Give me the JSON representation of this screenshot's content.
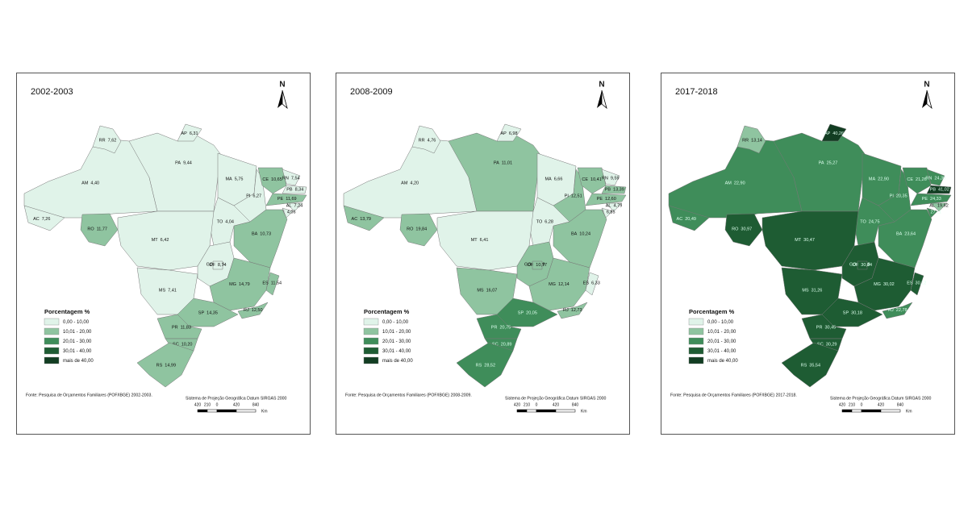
{
  "panels": [
    {
      "title": "2002-2003",
      "north": "N",
      "legend_title": "Porcentagem %",
      "legend": [
        {
          "label": "0,00 - 10,00",
          "color": "#e0f3e9"
        },
        {
          "label": "10,01 - 20,00",
          "color": "#8fc4a0"
        },
        {
          "label": "20,01 - 30,00",
          "color": "#3f8d5a"
        },
        {
          "label": "30,01 - 40,00",
          "color": "#1e5c33"
        },
        {
          "label": "mais de 40,00",
          "color": "#123d22"
        }
      ],
      "source": "Fonte: Pesquisa de Orçamentos Familiares (POF/IBGE) 2002-2003.",
      "projection": "Sistema de Projeção Geográfica Datum SIRGAS 2000",
      "scale": [
        "420",
        "210",
        "0",
        "420",
        "840",
        "Km"
      ],
      "states": [
        {
          "abbr": "AM",
          "value": "4,40",
          "color": "#e0f3e9"
        },
        {
          "abbr": "RR",
          "value": "7,62",
          "color": "#e0f3e9"
        },
        {
          "abbr": "AC",
          "value": "7,26",
          "color": "#e0f3e9"
        },
        {
          "abbr": "RO",
          "value": "11,77",
          "color": "#8fc4a0"
        },
        {
          "abbr": "PA",
          "value": "9,44",
          "color": "#e0f3e9"
        },
        {
          "abbr": "AP",
          "value": "6,31",
          "color": "#e0f3e9"
        },
        {
          "abbr": "MA",
          "value": "5,75",
          "color": "#e0f3e9"
        },
        {
          "abbr": "PI",
          "value": "6,27",
          "color": "#e0f3e9"
        },
        {
          "abbr": "CE",
          "value": "10,65",
          "color": "#8fc4a0"
        },
        {
          "abbr": "RN",
          "value": "7,54",
          "color": "#e0f3e9"
        },
        {
          "abbr": "PB",
          "value": "8,34",
          "color": "#e0f3e9"
        },
        {
          "abbr": "PE",
          "value": "11,69",
          "color": "#8fc4a0"
        },
        {
          "abbr": "AL",
          "value": "7,24",
          "color": "#e0f3e9"
        },
        {
          "abbr": "SE",
          "value": "4,06",
          "color": "#e0f3e9"
        },
        {
          "abbr": "BA",
          "value": "10,73",
          "color": "#8fc4a0"
        },
        {
          "abbr": "TO",
          "value": "4,04",
          "color": "#e0f3e9"
        },
        {
          "abbr": "MT",
          "value": "6,42",
          "color": "#e0f3e9"
        },
        {
          "abbr": "GO",
          "value": "7,25",
          "color": "#e0f3e9"
        },
        {
          "abbr": "DF",
          "value": "8,74",
          "color": "#e0f3e9"
        },
        {
          "abbr": "MS",
          "value": "7,41",
          "color": "#e0f3e9"
        },
        {
          "abbr": "MG",
          "value": "14,79",
          "color": "#8fc4a0"
        },
        {
          "abbr": "ES",
          "value": "11,54",
          "color": "#8fc4a0"
        },
        {
          "abbr": "RJ",
          "value": "12,50",
          "color": "#8fc4a0"
        },
        {
          "abbr": "SP",
          "value": "14,35",
          "color": "#8fc4a0"
        },
        {
          "abbr": "PR",
          "value": "11,83",
          "color": "#8fc4a0"
        },
        {
          "abbr": "SC",
          "value": "10,20",
          "color": "#8fc4a0"
        },
        {
          "abbr": "RS",
          "value": "14,99",
          "color": "#8fc4a0"
        }
      ]
    },
    {
      "title": "2008-2009",
      "north": "N",
      "legend_title": "Porcentagem %",
      "legend": [
        {
          "label": "0,00 - 10,00",
          "color": "#e0f3e9"
        },
        {
          "label": "10,01 - 20,00",
          "color": "#8fc4a0"
        },
        {
          "label": "20,01 - 30,00",
          "color": "#3f8d5a"
        },
        {
          "label": "30,01 - 40,00",
          "color": "#1e5c33"
        },
        {
          "label": "mais de 40,00",
          "color": "#123d22"
        }
      ],
      "source": "Fonte: Pesquisa de Orçamentos Familiares (POF/IBGE) 2008-2009.",
      "projection": "Sistema de Projeção Geográfica Datum SIRGAS 2000",
      "scale": [
        "420",
        "210",
        "0",
        "420",
        "840",
        "Km"
      ],
      "states": [
        {
          "abbr": "AM",
          "value": "4,20",
          "color": "#e0f3e9"
        },
        {
          "abbr": "RR",
          "value": "4,76",
          "color": "#e0f3e9"
        },
        {
          "abbr": "AC",
          "value": "13,79",
          "color": "#8fc4a0"
        },
        {
          "abbr": "RO",
          "value": "19,84",
          "color": "#8fc4a0"
        },
        {
          "abbr": "PA",
          "value": "11,01",
          "color": "#8fc4a0"
        },
        {
          "abbr": "AP",
          "value": "6,98",
          "color": "#e0f3e9"
        },
        {
          "abbr": "MA",
          "value": "6,66",
          "color": "#e0f3e9"
        },
        {
          "abbr": "PI",
          "value": "12,51",
          "color": "#8fc4a0"
        },
        {
          "abbr": "CE",
          "value": "10,41",
          "color": "#8fc4a0"
        },
        {
          "abbr": "RN",
          "value": "9,59",
          "color": "#e0f3e9"
        },
        {
          "abbr": "PB",
          "value": "13,39",
          "color": "#8fc4a0"
        },
        {
          "abbr": "PE",
          "value": "12,60",
          "color": "#8fc4a0"
        },
        {
          "abbr": "AL",
          "value": "4,79",
          "color": "#e0f3e9"
        },
        {
          "abbr": "SE",
          "value": "6,85",
          "color": "#e0f3e9"
        },
        {
          "abbr": "BA",
          "value": "10,24",
          "color": "#8fc4a0"
        },
        {
          "abbr": "TO",
          "value": "6,28",
          "color": "#e0f3e9"
        },
        {
          "abbr": "MT",
          "value": "6,41",
          "color": "#e0f3e9"
        },
        {
          "abbr": "GO",
          "value": "10,39",
          "color": "#8fc4a0"
        },
        {
          "abbr": "DF",
          "value": "10,77",
          "color": "#8fc4a0"
        },
        {
          "abbr": "MS",
          "value": "16,07",
          "color": "#8fc4a0"
        },
        {
          "abbr": "MG",
          "value": "12,14",
          "color": "#8fc4a0"
        },
        {
          "abbr": "ES",
          "value": "6,33",
          "color": "#e0f3e9"
        },
        {
          "abbr": "RJ",
          "value": "12,73",
          "color": "#8fc4a0"
        },
        {
          "abbr": "SP",
          "value": "20,05",
          "color": "#3f8d5a"
        },
        {
          "abbr": "PR",
          "value": "20,75",
          "color": "#3f8d5a"
        },
        {
          "abbr": "SC",
          "value": "20,89",
          "color": "#3f8d5a"
        },
        {
          "abbr": "RS",
          "value": "28,52",
          "color": "#3f8d5a"
        }
      ]
    },
    {
      "title": "2017-2018",
      "north": "N",
      "legend_title": "Porcentagem %",
      "legend": [
        {
          "label": "0,00 - 10,00",
          "color": "#e0f3e9"
        },
        {
          "label": "10,01 - 20,00",
          "color": "#8fc4a0"
        },
        {
          "label": "20,01 - 30,00",
          "color": "#3f8d5a"
        },
        {
          "label": "30,01 - 40,00",
          "color": "#1e5c33"
        },
        {
          "label": "mais de 40,00",
          "color": "#123d22"
        }
      ],
      "source": "Fonte: Pesquisa de Orçamentos Familiares (POF/IBGE) 2017-2018.",
      "projection": "Sistema de Projeção Geográfica Datum SIRGAS 2000",
      "scale": [
        "420",
        "210",
        "0",
        "420",
        "840",
        "Km"
      ],
      "states": [
        {
          "abbr": "AM",
          "value": "22,90",
          "color": "#3f8d5a"
        },
        {
          "abbr": "RR",
          "value": "13,14",
          "color": "#8fc4a0"
        },
        {
          "abbr": "AC",
          "value": "20,49",
          "color": "#3f8d5a"
        },
        {
          "abbr": "RO",
          "value": "30,97",
          "color": "#1e5c33"
        },
        {
          "abbr": "PA",
          "value": "25,27",
          "color": "#3f8d5a"
        },
        {
          "abbr": "AP",
          "value": "40,26",
          "color": "#123d22"
        },
        {
          "abbr": "MA",
          "value": "22,90",
          "color": "#3f8d5a"
        },
        {
          "abbr": "PI",
          "value": "20,35",
          "color": "#3f8d5a"
        },
        {
          "abbr": "CE",
          "value": "21,26",
          "color": "#3f8d5a"
        },
        {
          "abbr": "RN",
          "value": "24,30",
          "color": "#3f8d5a"
        },
        {
          "abbr": "PB",
          "value": "41,02",
          "color": "#123d22"
        },
        {
          "abbr": "PE",
          "value": "24,33",
          "color": "#3f8d5a"
        },
        {
          "abbr": "AL",
          "value": "19,62",
          "color": "#8fc4a0"
        },
        {
          "abbr": "SE",
          "value": "27,11",
          "color": "#3f8d5a"
        },
        {
          "abbr": "BA",
          "value": "23,64",
          "color": "#3f8d5a"
        },
        {
          "abbr": "TO",
          "value": "24,75",
          "color": "#3f8d5a"
        },
        {
          "abbr": "MT",
          "value": "30,47",
          "color": "#1e5c33"
        },
        {
          "abbr": "GO",
          "value": "30,58",
          "color": "#1e5c33"
        },
        {
          "abbr": "DF",
          "value": "30,84",
          "color": "#1e5c33"
        },
        {
          "abbr": "MS",
          "value": "31,26",
          "color": "#1e5c33"
        },
        {
          "abbr": "MG",
          "value": "30,02",
          "color": "#1e5c33"
        },
        {
          "abbr": "ES",
          "value": "30,12",
          "color": "#1e5c33"
        },
        {
          "abbr": "RJ",
          "value": "22,78",
          "color": "#3f8d5a"
        },
        {
          "abbr": "SP",
          "value": "30,18",
          "color": "#1e5c33"
        },
        {
          "abbr": "PR",
          "value": "30,45",
          "color": "#1e5c33"
        },
        {
          "abbr": "SC",
          "value": "30,29",
          "color": "#1e5c33"
        },
        {
          "abbr": "RS",
          "value": "35,54",
          "color": "#1e5c33"
        }
      ]
    }
  ]
}
